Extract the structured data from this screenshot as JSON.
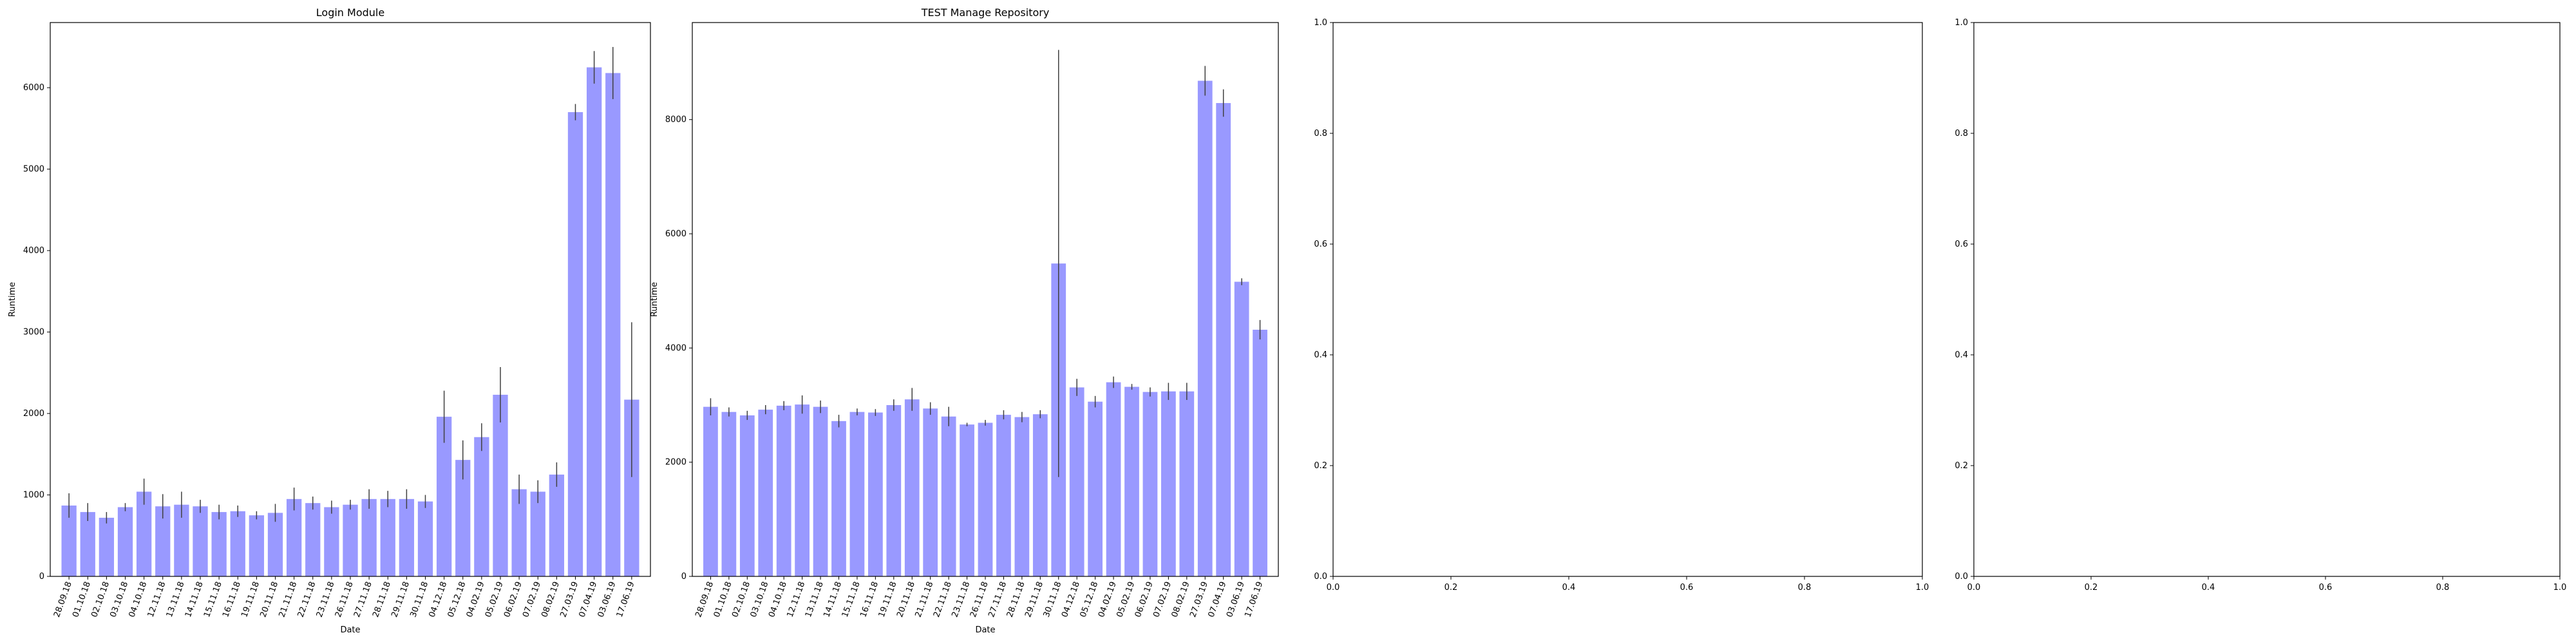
{
  "chart_data": [
    {
      "type": "bar",
      "title": "Login Module",
      "x_label": "Date",
      "y_label": "Runtime",
      "color": "#9999ff",
      "error_color": "#404040",
      "categories": [
        "28.09.18",
        "01.10.18",
        "02.10.18",
        "03.10.18",
        "04.10.18",
        "12.11.18",
        "13.11.18",
        "14.11.18",
        "15.11.18",
        "16.11.18",
        "19.11.18",
        "20.11.18",
        "21.11.18",
        "22.11.18",
        "23.11.18",
        "26.11.18",
        "27.11.18",
        "28.11.18",
        "29.11.18",
        "30.11.18",
        "04.12.18",
        "05.12.18",
        "04.02.19",
        "05.02.19",
        "06.02.19",
        "07.02.19",
        "08.02.19",
        "27.03.19",
        "07.04.19",
        "03.06.19",
        "17.06.19"
      ],
      "values": [
        870,
        790,
        720,
        850,
        1040,
        860,
        880,
        860,
        790,
        800,
        750,
        780,
        950,
        900,
        850,
        880,
        950,
        950,
        950,
        920,
        1960,
        1430,
        1710,
        2230,
        1070,
        1040,
        1250,
        5700,
        6250,
        6180,
        2170
      ],
      "errors": [
        150,
        110,
        70,
        50,
        160,
        150,
        160,
        80,
        90,
        70,
        50,
        110,
        140,
        80,
        80,
        60,
        120,
        100,
        120,
        80,
        320,
        240,
        170,
        340,
        180,
        140,
        150,
        100,
        200,
        320,
        950
      ],
      "ylim": [
        0,
        6800
      ],
      "yticks": [
        0,
        1000,
        2000,
        3000,
        4000,
        5000,
        6000
      ]
    },
    {
      "type": "bar",
      "title": "TEST Manage Repository",
      "x_label": "Date",
      "y_label": "Runtime",
      "color": "#9999ff",
      "error_color": "#404040",
      "categories": [
        "28.09.18",
        "01.10.18",
        "02.10.18",
        "03.10.18",
        "04.10.18",
        "12.11.18",
        "13.11.18",
        "14.11.18",
        "15.11.18",
        "16.11.18",
        "19.11.18",
        "20.11.18",
        "21.11.18",
        "22.11.18",
        "23.11.18",
        "26.11.18",
        "27.11.18",
        "28.11.18",
        "29.11.18",
        "30.11.18",
        "04.12.18",
        "05.12.18",
        "04.02.19",
        "05.02.19",
        "06.02.19",
        "07.02.19",
        "08.02.19",
        "27.03.19",
        "07.04.19",
        "03.06.19",
        "17.06.19"
      ],
      "values": [
        2970,
        2880,
        2820,
        2920,
        2990,
        3010,
        2970,
        2720,
        2880,
        2870,
        3000,
        3100,
        2940,
        2800,
        2660,
        2690,
        2830,
        2790,
        2840,
        5480,
        3310,
        3060,
        3400,
        3320,
        3230,
        3240,
        3240,
        8680,
        8290,
        5160,
        4320
      ],
      "errors": [
        150,
        80,
        80,
        80,
        80,
        160,
        110,
        110,
        60,
        60,
        100,
        200,
        110,
        170,
        30,
        50,
        80,
        90,
        70,
        3740,
        150,
        100,
        100,
        50,
        80,
        150,
        150,
        260,
        240,
        60,
        170
      ],
      "ylim": [
        0,
        9700
      ],
      "yticks": [
        0,
        2000,
        4000,
        6000,
        8000
      ]
    },
    {
      "type": "axes",
      "xlim": [
        0,
        1
      ],
      "xticks": [
        {
          "value": 0,
          "label": "0.0"
        },
        {
          "value": 0.2,
          "label": "0.2"
        },
        {
          "value": 0.4,
          "label": "0.4"
        },
        {
          "value": 0.6,
          "label": "0.6"
        },
        {
          "value": 0.8,
          "label": "0.8"
        },
        {
          "value": 1,
          "label": "1.0"
        }
      ],
      "ylim": [
        0,
        1
      ],
      "yticks": [
        {
          "value": 0,
          "label": "0.0"
        },
        {
          "value": 0.2,
          "label": "0.2"
        },
        {
          "value": 0.4,
          "label": "0.4"
        },
        {
          "value": 0.6,
          "label": "0.6"
        },
        {
          "value": 0.8,
          "label": "0.8"
        },
        {
          "value": 1,
          "label": "1.0"
        }
      ]
    },
    {
      "type": "axes",
      "xlim": [
        0,
        1
      ],
      "xticks": [
        {
          "value": 0,
          "label": "0.0"
        },
        {
          "value": 0.2,
          "label": "0.2"
        },
        {
          "value": 0.4,
          "label": "0.4"
        },
        {
          "value": 0.6,
          "label": "0.6"
        },
        {
          "value": 0.8,
          "label": "0.8"
        },
        {
          "value": 1,
          "label": "1.0"
        }
      ],
      "ylim": [
        0,
        1
      ],
      "yticks": [
        {
          "value": 0,
          "label": "0.0"
        },
        {
          "value": 0.2,
          "label": "0.2"
        },
        {
          "value": 0.4,
          "label": "0.4"
        },
        {
          "value": 0.6,
          "label": "0.6"
        },
        {
          "value": 0.8,
          "label": "0.8"
        },
        {
          "value": 1,
          "label": "1.0"
        }
      ]
    }
  ]
}
